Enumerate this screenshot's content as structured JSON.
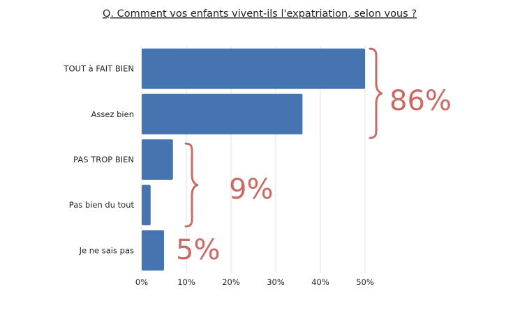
{
  "chart_data": {
    "type": "bar",
    "orientation": "horizontal",
    "title": "Q. Comment vos enfants vivent-ils l'expatriation, selon vous ?",
    "categories": [
      "TOUT à FAIT BIEN",
      "Assez bien",
      "PAS TROP BIEN",
      "Pas bien du tout",
      "Je ne sais pas"
    ],
    "values": [
      50,
      36,
      7,
      2,
      5
    ],
    "unit": "%",
    "xlim": [
      0,
      50
    ],
    "xticks": [
      "0%",
      "10%",
      "20%",
      "30%",
      "40%",
      "50%"
    ],
    "grid": true,
    "bar_color": "#4674b0",
    "annotations": [
      {
        "label": "86%",
        "categories": [
          "TOUT à FAIT BIEN",
          "Assez bien"
        ]
      },
      {
        "label": "9%",
        "categories": [
          "PAS TROP BIEN",
          "Pas bien du tout"
        ]
      },
      {
        "label": "5%",
        "categories": [
          "Je ne sais pas"
        ]
      }
    ],
    "annotation_color": "#c96a66",
    "xlabel": "",
    "ylabel": ""
  }
}
